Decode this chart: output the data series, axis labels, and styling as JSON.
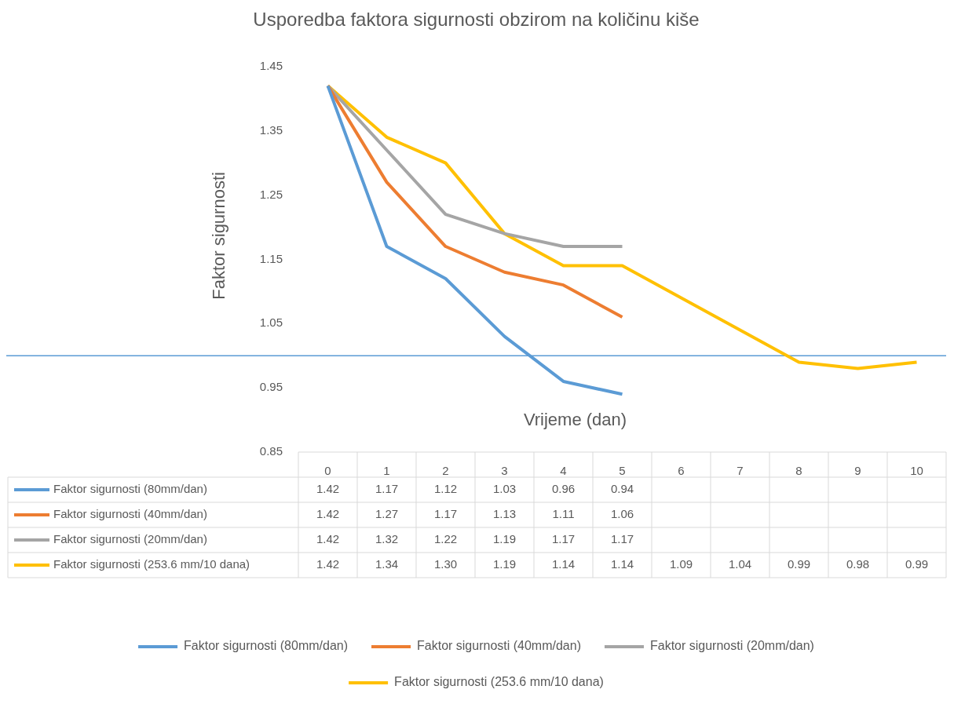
{
  "chart_data": {
    "type": "line",
    "title": "Usporedba faktora sigurnosti obzirom na količinu kiše",
    "xlabel": "Vrijeme (dan)",
    "ylabel": "Faktor sigurnosti",
    "categories": [
      "0",
      "1",
      "2",
      "3",
      "4",
      "5",
      "6",
      "7",
      "8",
      "9",
      "10"
    ],
    "series": [
      {
        "name": "Faktor sigurnosti (80mm/dan)",
        "color": "#5b9bd5",
        "values": [
          1.42,
          1.17,
          1.12,
          1.03,
          0.96,
          0.94,
          null,
          null,
          null,
          null,
          null
        ],
        "value_labels": [
          "1.42",
          "1.17",
          "1.12",
          "1.03",
          "0.96",
          "0.94",
          null,
          null,
          null,
          null,
          null
        ]
      },
      {
        "name": "Faktor sigurnosti (40mm/dan)",
        "color": "#ed7d31",
        "values": [
          1.42,
          1.27,
          1.17,
          1.13,
          1.11,
          1.06,
          null,
          null,
          null,
          null,
          null
        ],
        "value_labels": [
          "1.42",
          "1.27",
          "1.17",
          "1.13",
          "1.11",
          "1.06",
          null,
          null,
          null,
          null,
          null
        ]
      },
      {
        "name": "Faktor sigurnosti (20mm/dan)",
        "color": "#a5a5a5",
        "values": [
          1.42,
          1.32,
          1.22,
          1.19,
          1.17,
          1.17,
          null,
          null,
          null,
          null,
          null
        ],
        "value_labels": [
          "1.42",
          "1.32",
          "1.22",
          "1.19",
          "1.17",
          "1.17",
          null,
          null,
          null,
          null,
          null
        ]
      },
      {
        "name": "Faktor sigurnosti (253.6 mm/10 dana)",
        "color": "#ffc000",
        "values": [
          1.42,
          1.34,
          1.3,
          1.19,
          1.14,
          1.14,
          1.09,
          1.04,
          0.99,
          0.98,
          0.99
        ],
        "value_labels": [
          "1.42",
          "1.34",
          "1.30",
          "1.19",
          "1.14",
          "1.14",
          "1.09",
          "1.04",
          "0.99",
          "0.98",
          "0.99"
        ]
      }
    ],
    "ylim": [
      0.85,
      1.45
    ],
    "yticks": [
      0.85,
      0.95,
      1.05,
      1.15,
      1.25,
      1.35,
      1.45
    ],
    "ref_lines": [
      {
        "axis": "y",
        "value": 1.0,
        "color": "#5b9bd5"
      }
    ],
    "legend": "bottom",
    "marker": "none"
  }
}
